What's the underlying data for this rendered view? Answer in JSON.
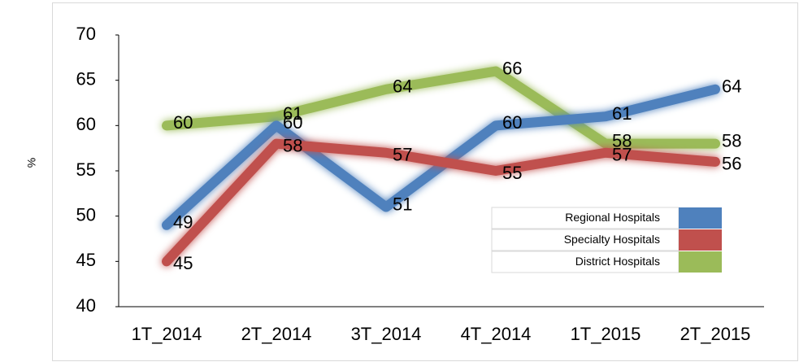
{
  "chart_data": {
    "type": "line",
    "y_label": "%",
    "categories": [
      "1T_2014",
      "2T_2014",
      "3T_2014",
      "4T_2014",
      "1T_2015",
      "2T_2015"
    ],
    "series": [
      {
        "name": "Regional Hospitals",
        "color": "#4f81bd",
        "values": [
          49,
          60,
          51,
          60,
          61,
          64
        ]
      },
      {
        "name": "Specialty Hospitals",
        "color": "#c0504d",
        "values": [
          45,
          58,
          57,
          55,
          57,
          56
        ]
      },
      {
        "name": "District Hospitals",
        "color": "#9bbb59",
        "values": [
          60,
          61,
          64,
          66,
          58,
          58
        ]
      }
    ],
    "ylim": [
      40,
      70
    ],
    "yticks": [
      40,
      45,
      50,
      55,
      60,
      65,
      70
    ],
    "grid": false,
    "legend": "lower right"
  }
}
